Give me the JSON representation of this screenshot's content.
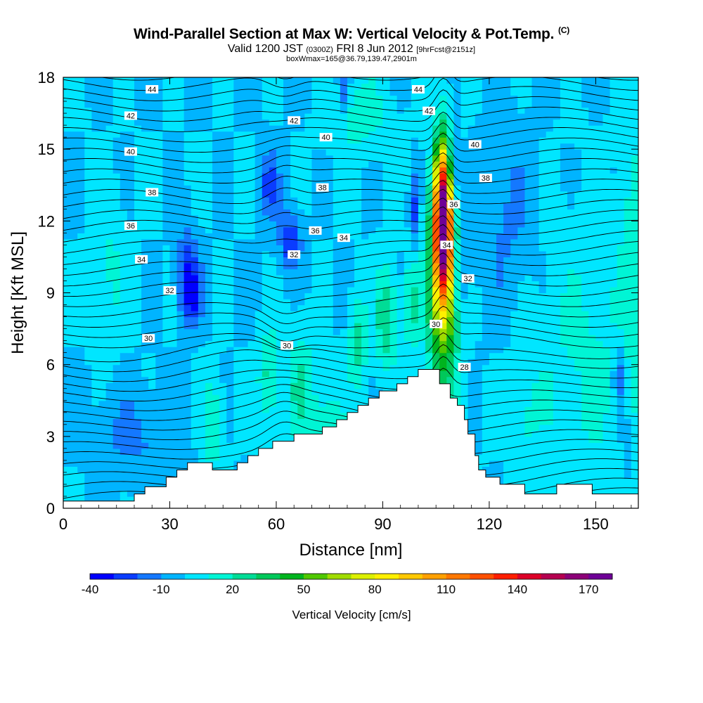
{
  "header": {
    "title": "Wind-Parallel Section at Max W: Vertical Velocity & Pot.Temp.",
    "copyright": "(C)",
    "valid_prefix": "Valid 1200 JST",
    "valid_utc": "(0300Z)",
    "valid_date": "FRI 8 Jun 2012",
    "forecast": "[9hrFcst@2151z]",
    "box_info": "boxWmax=165@36.79,139.47,2901m"
  },
  "chart_data": {
    "type": "heatmap",
    "xlabel": "Distance [nm]",
    "ylabel": "Height [Kft MSL]",
    "xlim": [
      0,
      162
    ],
    "ylim": [
      0,
      18
    ],
    "xticks": [
      0,
      30,
      60,
      90,
      120,
      150
    ],
    "yticks": [
      0,
      3,
      6,
      9,
      12,
      15,
      18
    ],
    "colorbar": {
      "title": "Vertical Velocity [cm/s]",
      "range": [
        -40,
        185
      ],
      "tick_labels": [
        -40,
        -10,
        20,
        50,
        80,
        110,
        140,
        170
      ],
      "colors": [
        "#0000ff",
        "#0a3cff",
        "#1478ff",
        "#00b4ff",
        "#00e6ff",
        "#00f5d5",
        "#00dc96",
        "#00c85a",
        "#00b41e",
        "#50c800",
        "#a0dc00",
        "#dcf000",
        "#fff000",
        "#ffc800",
        "#ffa000",
        "#ff7800",
        "#ff5000",
        "#ff1e00",
        "#dc0028",
        "#b40050",
        "#8c0078",
        "#6e0096"
      ]
    },
    "theta_contour_labels": [
      28,
      30,
      32,
      34,
      36,
      38,
      40,
      42,
      44
    ],
    "updraft_max": {
      "distance": 107,
      "height": 12.5,
      "w": 165
    },
    "terrain": [
      [
        0,
        0.3
      ],
      [
        20,
        0.3
      ],
      [
        20,
        0.6
      ],
      [
        23,
        0.6
      ],
      [
        23,
        0.9
      ],
      [
        29,
        0.9
      ],
      [
        29,
        1.3
      ],
      [
        32,
        1.3
      ],
      [
        32,
        1.6
      ],
      [
        35,
        1.6
      ],
      [
        35,
        1.9
      ],
      [
        42,
        1.9
      ],
      [
        42,
        1.6
      ],
      [
        49,
        1.6
      ],
      [
        49,
        1.9
      ],
      [
        52,
        1.9
      ],
      [
        52,
        2.2
      ],
      [
        55,
        2.2
      ],
      [
        55,
        2.5
      ],
      [
        59,
        2.5
      ],
      [
        59,
        2.8
      ],
      [
        65,
        2.8
      ],
      [
        65,
        3.1
      ],
      [
        73,
        3.1
      ],
      [
        73,
        3.4
      ],
      [
        77,
        3.4
      ],
      [
        77,
        3.7
      ],
      [
        80,
        3.7
      ],
      [
        80,
        4.0
      ],
      [
        83,
        4.0
      ],
      [
        83,
        4.3
      ],
      [
        86,
        4.3
      ],
      [
        86,
        4.6
      ],
      [
        89,
        4.6
      ],
      [
        89,
        4.9
      ],
      [
        94,
        4.9
      ],
      [
        94,
        5.2
      ],
      [
        97,
        5.2
      ],
      [
        97,
        5.5
      ],
      [
        100,
        5.5
      ],
      [
        100,
        5.8
      ],
      [
        106,
        5.8
      ],
      [
        106,
        5.2
      ],
      [
        109,
        5.2
      ],
      [
        109,
        4.6
      ],
      [
        111,
        4.6
      ],
      [
        111,
        4.3
      ],
      [
        113,
        4.3
      ],
      [
        113,
        3.7
      ],
      [
        114,
        3.7
      ],
      [
        114,
        3.1
      ],
      [
        116,
        3.1
      ],
      [
        116,
        2.2
      ],
      [
        117,
        2.2
      ],
      [
        117,
        1.6
      ],
      [
        119,
        1.6
      ],
      [
        119,
        1.3
      ],
      [
        123,
        1.3
      ],
      [
        123,
        1.0
      ],
      [
        130,
        1.0
      ],
      [
        130,
        0.6
      ],
      [
        139,
        0.6
      ],
      [
        139,
        1.0
      ],
      [
        149,
        1.0
      ],
      [
        149,
        0.6
      ],
      [
        162,
        0.6
      ],
      [
        162,
        0
      ],
      [
        0,
        0
      ]
    ]
  }
}
